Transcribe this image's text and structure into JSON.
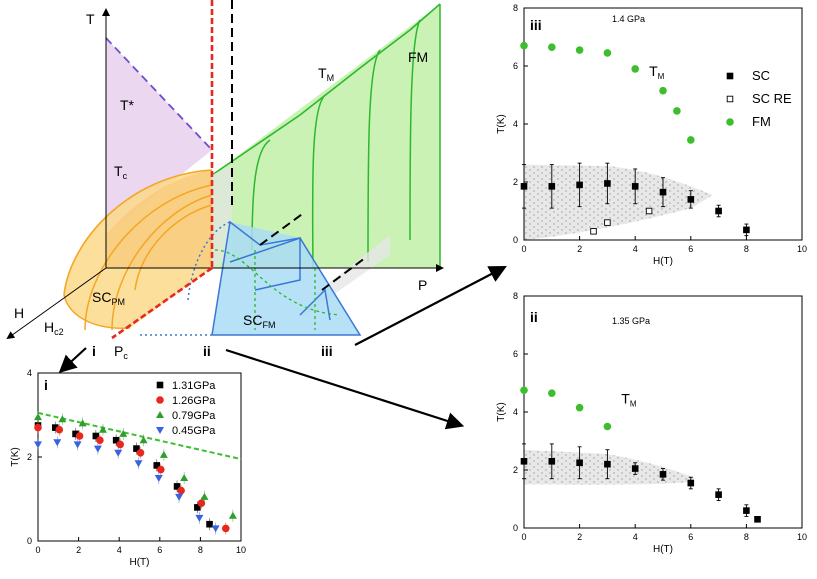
{
  "diagram": {
    "axis_T": "T",
    "axis_H": "H",
    "axis_P": "P",
    "label_tstar": "T*",
    "label_tc": "T",
    "label_tc_sub": "c",
    "label_tm": "T",
    "label_tm_sub": "M",
    "label_fm": "FM",
    "label_scpm": "SC",
    "label_scpm_sub": "PM",
    "label_scfm": "SC",
    "label_scfm_sub": "FM",
    "label_hc2": "H",
    "label_hc2_sub": "c2",
    "label_pc": "P",
    "label_pc_sub": "c",
    "cut_i": "i",
    "cut_ii": "ii",
    "cut_iii": "iii",
    "colors": {
      "pm_fill": "#fbd98a",
      "pm_line": "#f5a623",
      "fm_fill": "#c9f2b4",
      "fm_line": "#2db82d",
      "scfm_fill": "#a9dcf5",
      "scfm_line": "#3a78d6",
      "tstar_fill": "#ecd7f0",
      "tstar_line": "#6a4fd0",
      "red": "#e8281e"
    }
  },
  "chart_data": [
    {
      "id": "iii",
      "type": "scatter",
      "panel_label": "iii",
      "title": "1.4 GPa",
      "xlabel": "H(T)",
      "ylabel": "T(K)",
      "xlim": [
        0,
        10
      ],
      "ylim": [
        0,
        8
      ],
      "xticks": [
        0,
        2,
        4,
        6,
        8,
        10
      ],
      "yticks": [
        0,
        2,
        4,
        6,
        8
      ],
      "tm_label": "T",
      "tm_label_sub": "M",
      "legend": [
        "SC",
        "SC RE",
        "FM"
      ],
      "series": [
        {
          "name": "SC",
          "marker": "square",
          "color": "#000000",
          "x": [
            0,
            1,
            2,
            3,
            4,
            5,
            6,
            7,
            8
          ],
          "y": [
            1.85,
            1.85,
            1.9,
            1.95,
            1.85,
            1.65,
            1.4,
            1.0,
            0.35
          ],
          "err": [
            0.75,
            0.75,
            0.75,
            0.7,
            0.6,
            0.5,
            0.3,
            0.2,
            0.2
          ]
        },
        {
          "name": "SC RE",
          "marker": "open-square",
          "color": "#000000",
          "x": [
            2.5,
            3.0,
            4.5
          ],
          "y": [
            0.3,
            0.6,
            1.0
          ]
        },
        {
          "name": "FM",
          "marker": "circle",
          "color": "#3cbf2c",
          "x": [
            0,
            1,
            2,
            3,
            4,
            5,
            5.5,
            6
          ],
          "y": [
            6.7,
            6.65,
            6.55,
            6.45,
            5.9,
            5.15,
            4.45,
            3.45
          ]
        }
      ]
    },
    {
      "id": "ii",
      "type": "scatter",
      "panel_label": "ii",
      "title": "1.35 GPa",
      "xlabel": "H(T)",
      "ylabel": "T(K)",
      "xlim": [
        0,
        10
      ],
      "ylim": [
        0,
        8
      ],
      "xticks": [
        0,
        2,
        4,
        6,
        8,
        10
      ],
      "yticks": [
        0,
        2,
        4,
        6,
        8
      ],
      "tm_label": "T",
      "tm_label_sub": "M",
      "series": [
        {
          "name": "SC",
          "marker": "square",
          "color": "#000000",
          "x": [
            0,
            1,
            2,
            3,
            4,
            5,
            6,
            7,
            8,
            8.4
          ],
          "y": [
            2.3,
            2.3,
            2.25,
            2.2,
            2.05,
            1.85,
            1.55,
            1.15,
            0.6,
            0.3
          ],
          "err": [
            0.6,
            0.6,
            0.55,
            0.5,
            0.2,
            0.2,
            0.2,
            0.2,
            0.2,
            0.05
          ]
        },
        {
          "name": "FM",
          "marker": "circle",
          "color": "#3cbf2c",
          "x": [
            0,
            1,
            2,
            3
          ],
          "y": [
            4.75,
            4.65,
            4.15,
            3.5
          ]
        }
      ]
    },
    {
      "id": "i",
      "type": "scatter",
      "panel_label": "i",
      "title": "",
      "xlabel": "H(T)",
      "ylabel": "T(K)",
      "xlim": [
        0,
        10
      ],
      "ylim": [
        0,
        4
      ],
      "xticks": [
        0,
        2,
        4,
        6,
        8,
        10
      ],
      "yticks": [
        0,
        2,
        4
      ],
      "legend": [
        "1.31GPa",
        "1.26GPa",
        "0.79GPa",
        "0.45GPa"
      ],
      "series": [
        {
          "name": "1.31GPa",
          "marker": "square",
          "color": "#000000",
          "x": [
            0,
            1,
            2,
            3,
            4,
            5,
            6,
            7,
            8,
            8.6
          ],
          "y": [
            2.75,
            2.7,
            2.55,
            2.5,
            2.4,
            2.2,
            1.8,
            1.3,
            0.8,
            0.4
          ]
        },
        {
          "name": "1.26GPa",
          "marker": "circle",
          "color": "#e8281e",
          "x": [
            0,
            1,
            2,
            3,
            4,
            5,
            6,
            7,
            8,
            9.2
          ],
          "y": [
            2.7,
            2.65,
            2.5,
            2.4,
            2.3,
            2.1,
            1.7,
            1.2,
            0.9,
            0.3
          ]
        },
        {
          "name": "0.79GPa",
          "marker": "triangle-up",
          "color": "#2f9e2f",
          "x": [
            0,
            1,
            2,
            3,
            4,
            5,
            6,
            7,
            8,
            9.4
          ],
          "y": [
            2.95,
            2.9,
            2.8,
            2.65,
            2.55,
            2.4,
            2.05,
            1.5,
            1.05,
            0.6
          ]
        },
        {
          "name": "0.45GPa",
          "marker": "triangle-down",
          "color": "#3a62e0",
          "x": [
            0,
            1,
            2,
            3,
            4,
            5,
            6,
            7,
            8,
            8.8
          ],
          "y": [
            2.3,
            2.35,
            2.3,
            2.2,
            2.1,
            1.85,
            1.5,
            1.05,
            0.55,
            0.3
          ]
        }
      ],
      "dashed_line": {
        "x": [
          0,
          10
        ],
        "y": [
          3.05,
          1.95
        ]
      }
    }
  ]
}
